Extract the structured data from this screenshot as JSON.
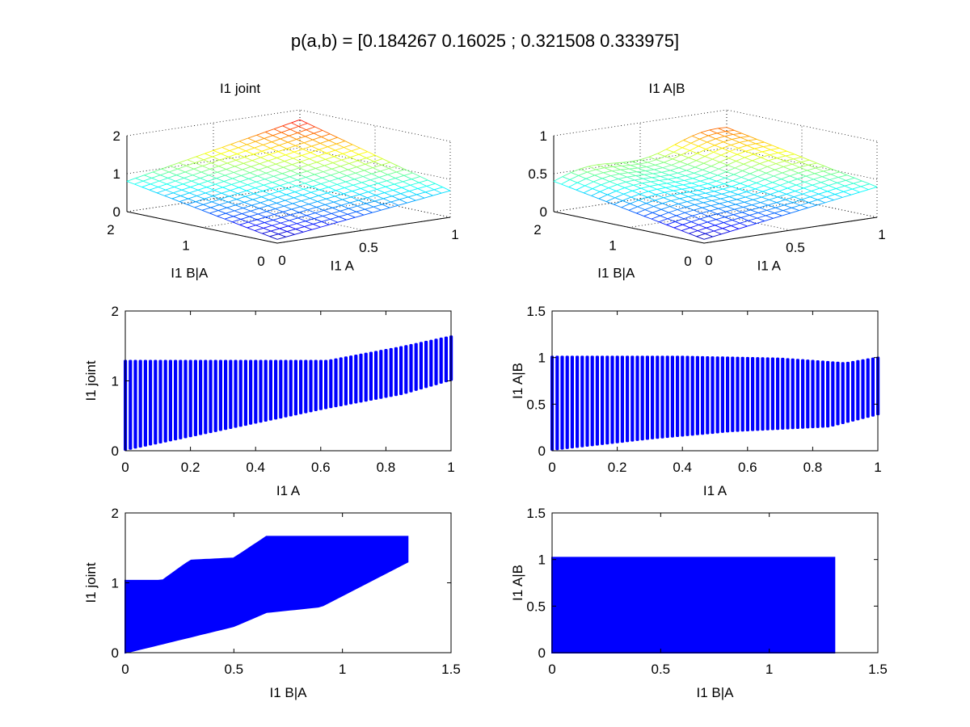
{
  "figure": {
    "suptitle": "p(a,b) = [0.184267 0.16025 ; 0.321508 0.333975]"
  },
  "chart_data": [
    {
      "type": "surface",
      "title": "I1 joint",
      "xlabel": "I1 A",
      "ylabel": "I1 B|A",
      "zlabel": "",
      "xlim": [
        0,
        1
      ],
      "ylim": [
        0,
        2
      ],
      "zlim": [
        0,
        2
      ],
      "xticks": [
        "0",
        "0.5",
        "1"
      ],
      "yticks": [
        "0",
        "1",
        "2"
      ],
      "zticks": [
        "0",
        "1",
        "2"
      ],
      "grid": true,
      "colormap": "jet",
      "n": 21
    },
    {
      "type": "surface",
      "title": "I1 A|B",
      "xlabel": "I1 A",
      "ylabel": "I1 B|A",
      "zlabel": "",
      "xlim": [
        0,
        1
      ],
      "ylim": [
        0,
        2
      ],
      "zlim": [
        0,
        1
      ],
      "xticks": [
        "0",
        "0.5",
        "1"
      ],
      "yticks": [
        "0",
        "1",
        "2"
      ],
      "zticks": [
        "0",
        "0.5",
        "1"
      ],
      "grid": true,
      "colormap": "jet",
      "n": 21
    },
    {
      "type": "scatter",
      "title": "",
      "xlabel": "I1 A",
      "ylabel": "I1 joint",
      "xlim": [
        0,
        1
      ],
      "ylim": [
        0,
        2
      ],
      "xticks": [
        "0",
        "0.2",
        "0.4",
        "0.6",
        "0.8",
        "1"
      ],
      "yticks": [
        "0",
        "1",
        "2"
      ],
      "color": "#0000ff",
      "columns": 66,
      "lower": [
        [
          0,
          0
        ],
        [
          0.62,
          0.6
        ],
        [
          0.85,
          0.8
        ],
        [
          1,
          1.0
        ]
      ],
      "upper": [
        [
          0,
          1.3
        ],
        [
          0.62,
          1.3
        ],
        [
          0.85,
          1.5
        ],
        [
          1,
          1.65
        ]
      ]
    },
    {
      "type": "scatter",
      "title": "",
      "xlabel": "I1 A",
      "ylabel": "I1 A|B",
      "xlim": [
        0,
        1
      ],
      "ylim": [
        0,
        1.5
      ],
      "xticks": [
        "0",
        "0.2",
        "0.4",
        "0.6",
        "0.8",
        "1"
      ],
      "yticks": [
        "0",
        "0.5",
        "1",
        "1.5"
      ],
      "color": "#0000ff",
      "columns": 66,
      "lower": [
        [
          0,
          0
        ],
        [
          0.3,
          0.12
        ],
        [
          0.55,
          0.2
        ],
        [
          0.85,
          0.25
        ],
        [
          1,
          0.38
        ]
      ],
      "upper": [
        [
          0,
          1.02
        ],
        [
          0.4,
          1.02
        ],
        [
          0.7,
          1.0
        ],
        [
          0.9,
          0.95
        ],
        [
          1,
          1.01
        ]
      ]
    },
    {
      "type": "scatter",
      "title": "",
      "xlabel": "I1 B|A",
      "ylabel": "I1 joint",
      "xlim": [
        0,
        1.5
      ],
      "ylim": [
        0,
        2
      ],
      "xticks": [
        "0",
        "0.5",
        "1",
        "1.5"
      ],
      "yticks": [
        "0",
        "1",
        "2"
      ],
      "color": "#0000ff",
      "region": {
        "xmax": 1.3,
        "lower": [
          [
            0,
            0
          ],
          [
            0.5,
            0.38
          ],
          [
            0.65,
            0.58
          ],
          [
            0.9,
            0.66
          ],
          [
            1.3,
            1.3
          ]
        ],
        "upper": [
          [
            0,
            1.03
          ],
          [
            0.17,
            1.03
          ],
          [
            0.3,
            1.32
          ],
          [
            0.5,
            1.35
          ],
          [
            0.65,
            1.66
          ],
          [
            1.3,
            1.66
          ]
        ]
      }
    },
    {
      "type": "scatter",
      "title": "",
      "xlabel": "I1 B|A",
      "ylabel": "I1 A|B",
      "xlim": [
        0,
        1.5
      ],
      "ylim": [
        0,
        1.5
      ],
      "xticks": [
        "0",
        "0.5",
        "1",
        "1.5"
      ],
      "yticks": [
        "0",
        "0.5",
        "1",
        "1.5"
      ],
      "color": "#0000ff",
      "region": {
        "xmax": 1.3,
        "lower": [
          [
            0,
            0
          ],
          [
            1.3,
            0
          ]
        ],
        "upper": [
          [
            0,
            1.02
          ],
          [
            1.3,
            1.02
          ]
        ]
      }
    }
  ]
}
